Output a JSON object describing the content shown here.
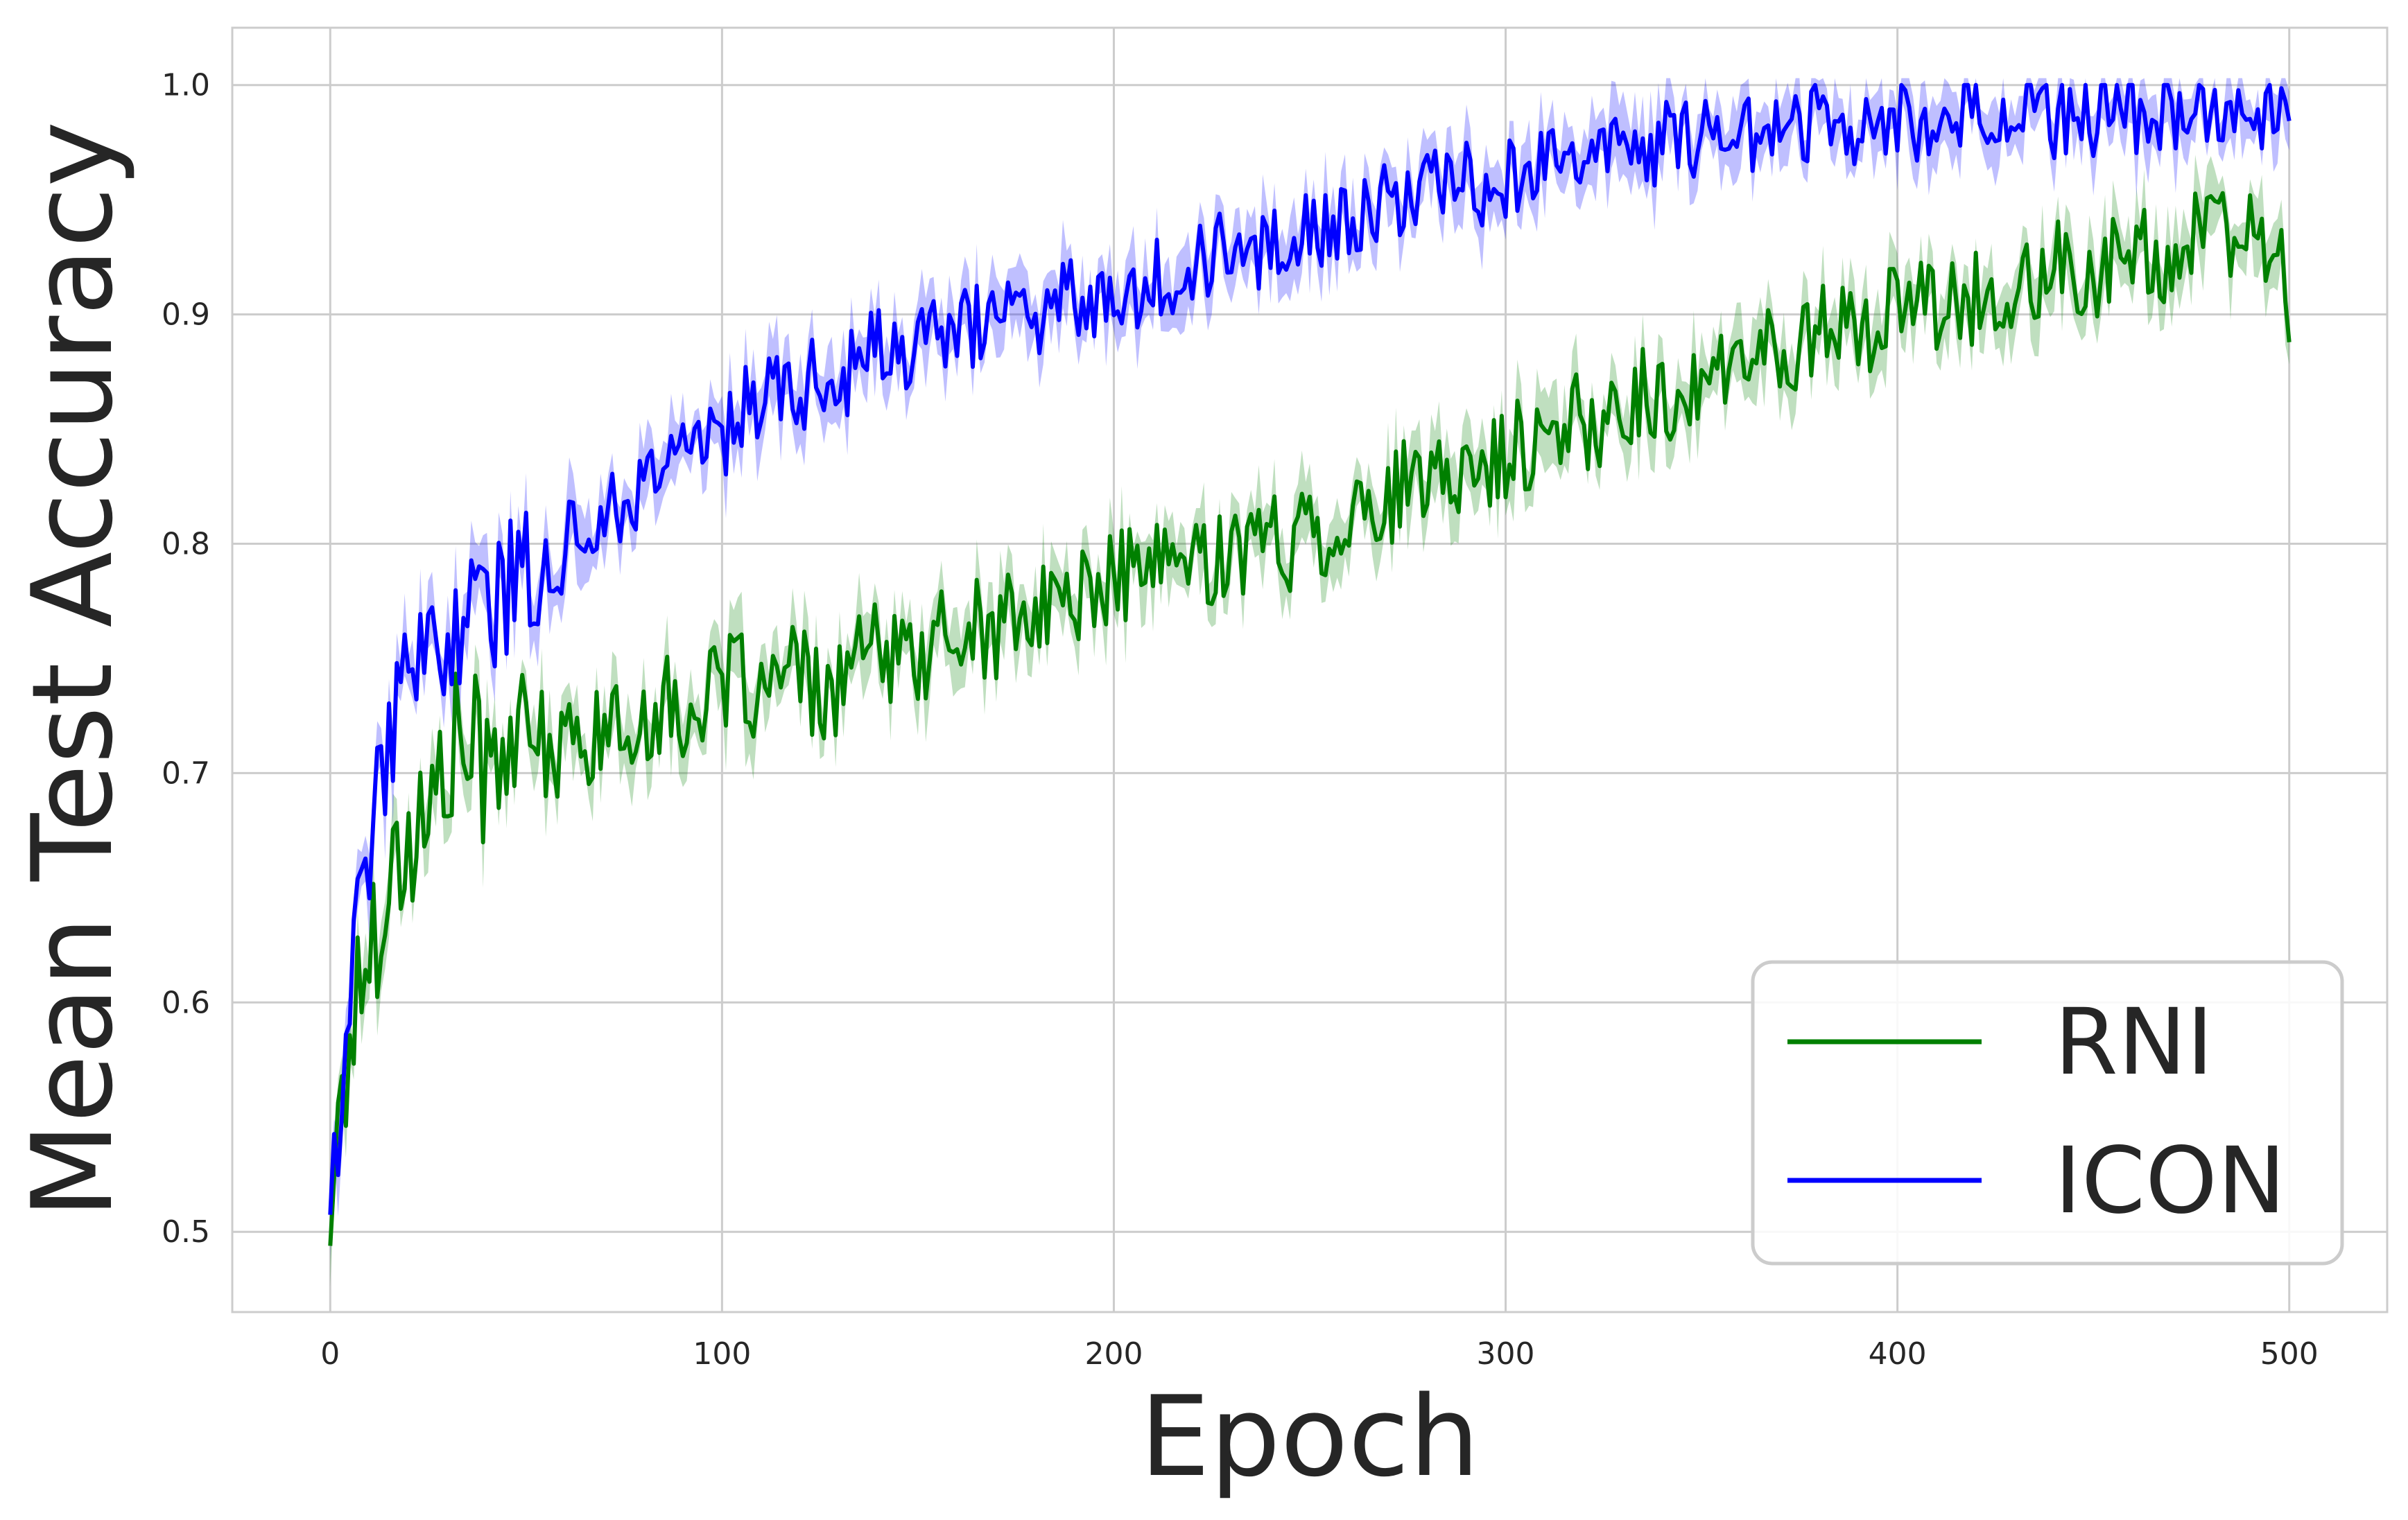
{
  "chart_data": {
    "type": "line",
    "title": "",
    "xlabel": "Epoch",
    "ylabel": "Mean Test Accuracy",
    "xlim": [
      -25,
      525
    ],
    "ylim": [
      0.465,
      1.025
    ],
    "xticks": [
      0,
      100,
      200,
      300,
      400,
      500
    ],
    "xtick_labels": [
      "0",
      "100",
      "200",
      "300",
      "400",
      "500"
    ],
    "yticks": [
      0.5,
      0.6,
      0.7,
      0.8,
      0.9,
      1.0
    ],
    "ytick_labels": [
      "0.5",
      "0.6",
      "0.7",
      "0.8",
      "0.9",
      "1.0"
    ],
    "grid": true,
    "legend": {
      "position": "lower-right",
      "entries": [
        "RNI",
        "ICON"
      ]
    },
    "series_note_x": [
      0,
      25,
      50,
      75,
      100,
      125,
      150,
      175,
      200,
      225,
      250,
      275,
      300,
      325,
      350,
      375,
      400,
      425,
      450,
      475,
      500
    ],
    "series": [
      {
        "name": "RNI",
        "color": "#008000",
        "band_color": "#008000",
        "x_step": 5,
        "values": [
          0.512,
          0.585,
          0.625,
          0.655,
          0.67,
          0.68,
          0.705,
          0.715,
          0.7,
          0.72,
          0.705,
          0.715,
          0.71,
          0.715,
          0.72,
          0.715,
          0.725,
          0.73,
          0.725,
          0.73,
          0.735,
          0.745,
          0.73,
          0.74,
          0.745,
          0.73,
          0.74,
          0.75,
          0.755,
          0.745,
          0.75,
          0.76,
          0.755,
          0.765,
          0.76,
          0.77,
          0.765,
          0.775,
          0.78,
          0.775,
          0.785,
          0.79,
          0.785,
          0.795,
          0.79,
          0.795,
          0.8,
          0.795,
          0.805,
          0.8,
          0.81,
          0.805,
          0.815,
          0.81,
          0.82,
          0.825,
          0.82,
          0.83,
          0.835,
          0.83,
          0.84,
          0.845,
          0.84,
          0.85,
          0.855,
          0.85,
          0.86,
          0.865,
          0.86,
          0.87,
          0.875,
          0.87,
          0.88,
          0.885,
          0.88,
          0.89,
          0.895,
          0.89,
          0.9,
          0.895,
          0.9,
          0.905,
          0.9,
          0.91,
          0.905,
          0.91,
          0.915,
          0.91,
          0.92,
          0.915,
          0.92,
          0.925,
          0.92,
          0.93,
          0.925,
          0.93,
          0.935,
          0.93,
          0.935,
          0.93,
          0.905
        ]
      },
      {
        "name": "ICON",
        "color": "#0000ff",
        "band_color": "#0000ff",
        "x_step": 5,
        "values": [
          0.52,
          0.6,
          0.67,
          0.72,
          0.735,
          0.75,
          0.76,
          0.77,
          0.77,
          0.78,
          0.79,
          0.79,
          0.8,
          0.81,
          0.81,
          0.82,
          0.825,
          0.835,
          0.84,
          0.85,
          0.845,
          0.86,
          0.86,
          0.87,
          0.865,
          0.875,
          0.87,
          0.88,
          0.885,
          0.88,
          0.885,
          0.89,
          0.895,
          0.895,
          0.9,
          0.905,
          0.9,
          0.905,
          0.91,
          0.905,
          0.915,
          0.91,
          0.92,
          0.915,
          0.92,
          0.925,
          0.93,
          0.925,
          0.93,
          0.935,
          0.94,
          0.935,
          0.94,
          0.945,
          0.95,
          0.945,
          0.955,
          0.955,
          0.96,
          0.955,
          0.96,
          0.965,
          0.965,
          0.97,
          0.965,
          0.97,
          0.975,
          0.97,
          0.975,
          0.975,
          0.98,
          0.975,
          0.98,
          0.98,
          0.985,
          0.98,
          0.985,
          0.985,
          0.98,
          0.985,
          0.985,
          0.985,
          0.98,
          0.985,
          0.99,
          0.985,
          0.985,
          0.99,
          0.985,
          0.99,
          0.985,
          0.99,
          0.985,
          0.99,
          0.99,
          0.985,
          0.99,
          0.99,
          0.985,
          0.99,
          0.985
        ]
      }
    ]
  }
}
